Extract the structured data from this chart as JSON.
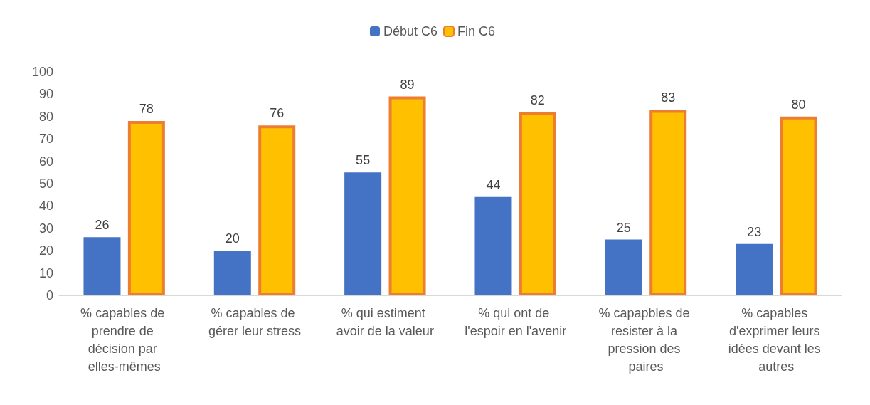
{
  "chart_data": {
    "type": "bar",
    "categories": [
      "% capables de prendre de décision par elles-mêmes",
      "% capables de gérer leur stress",
      "% qui estiment avoir de la valeur",
      "% qui ont de l'espoir en l'avenir",
      "% capapbles de resister à la pression des paires",
      "% capables d'exprimer leurs idées devant les autres"
    ],
    "series": [
      {
        "name": "Début C6",
        "color": "#4472c4",
        "values": [
          26,
          20,
          55,
          44,
          25,
          23
        ]
      },
      {
        "name": "Fin C6",
        "color": "#ffc000",
        "values": [
          78,
          76,
          89,
          82,
          83,
          80
        ]
      }
    ],
    "ylim": [
      0,
      100
    ],
    "yticks": [
      0,
      10,
      20,
      30,
      40,
      50,
      60,
      70,
      80,
      90,
      100
    ],
    "grid": false,
    "legend": "top",
    "data_labels": true
  }
}
